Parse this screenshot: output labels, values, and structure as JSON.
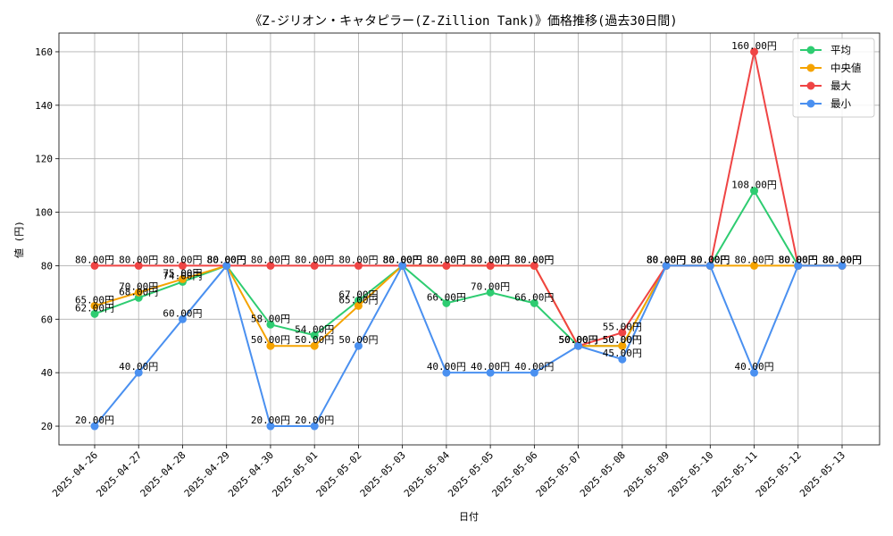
{
  "chart_data": {
    "type": "line",
    "title": "《Z-ジリオン・キャタピラー(Z-Zillion Tank)》価格推移(過去30日間)",
    "xlabel": "日付",
    "ylabel": "値 (円)",
    "ylim": [
      13,
      167
    ],
    "yticks": [
      20,
      40,
      60,
      80,
      100,
      120,
      140,
      160
    ],
    "grid": true,
    "legend_position": "top-right",
    "value_suffix": "円",
    "categories": [
      "2025-04-26",
      "2025-04-27",
      "2025-04-28",
      "2025-04-29",
      "2025-04-30",
      "2025-05-01",
      "2025-05-02",
      "2025-05-03",
      "2025-05-04",
      "2025-05-05",
      "2025-05-06",
      "2025-05-07",
      "2025-05-08",
      "2025-05-09",
      "2025-05-10",
      "2025-05-11",
      "2025-05-12",
      "2025-05-13"
    ],
    "series": [
      {
        "name": "平均",
        "color": "#2ecc71",
        "values": [
          62,
          68,
          74,
          80,
          58,
          54,
          67,
          80,
          66,
          70,
          66,
          50,
          50,
          80,
          80,
          108,
          80,
          80
        ]
      },
      {
        "name": "中央値",
        "color": "#f5a300",
        "values": [
          65,
          70,
          75,
          80,
          50,
          50,
          65,
          80,
          80,
          80,
          80,
          50,
          50,
          80,
          80,
          80,
          80,
          80
        ]
      },
      {
        "name": "最大",
        "color": "#ef4444",
        "values": [
          80,
          80,
          80,
          80,
          80,
          80,
          80,
          80,
          80,
          80,
          80,
          50,
          55,
          80,
          80,
          160,
          80,
          80
        ]
      },
      {
        "name": "最小",
        "color": "#4a90f0",
        "values": [
          20,
          40,
          60,
          80,
          20,
          20,
          50,
          80,
          40,
          40,
          40,
          50,
          45,
          80,
          80,
          40,
          80,
          80
        ]
      }
    ]
  }
}
